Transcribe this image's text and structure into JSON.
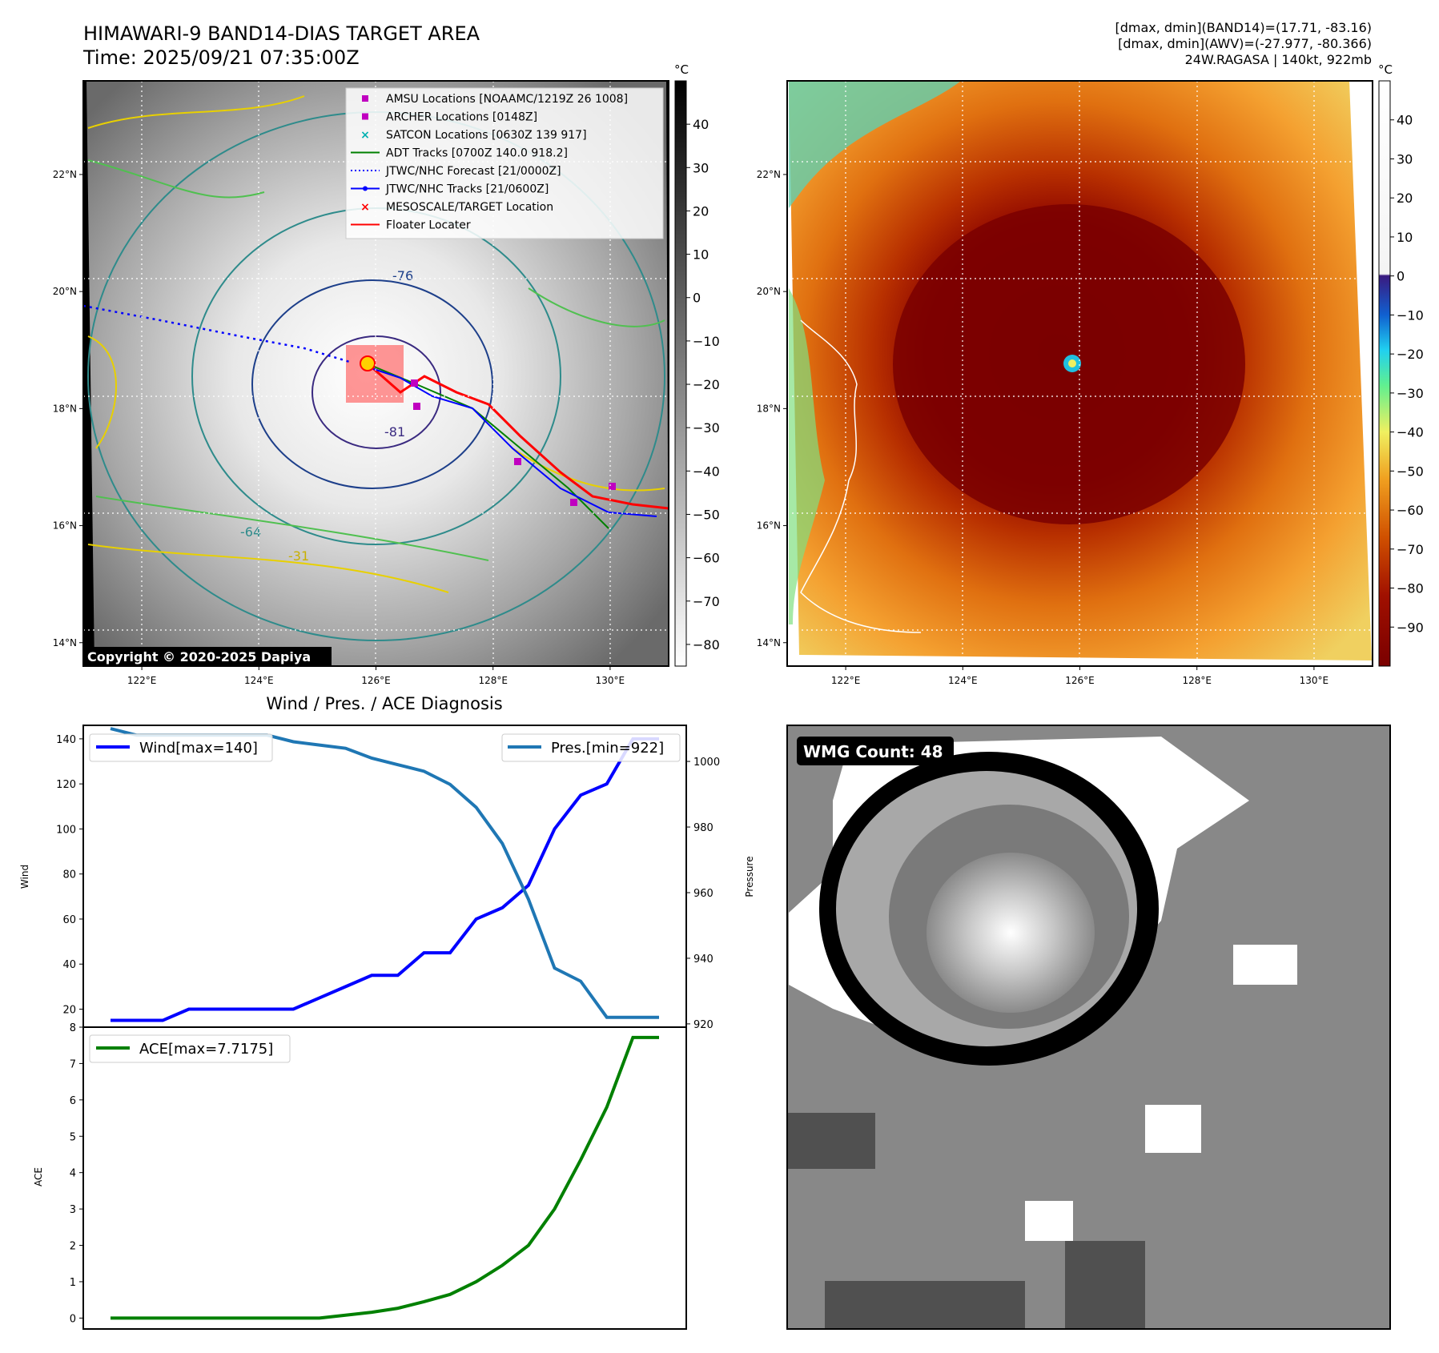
{
  "header": {
    "title": "HIMAWARI-9 BAND14-DIAS TARGET AREA",
    "time": "Time: 2025/09/21 07:35:00Z",
    "stat1": "[dmax, dmin](BAND14)=(17.71, -83.16)",
    "stat2": "[dmax, dmin](AWV)=(-27.977, -80.366)",
    "storm": "24W.RAGASA | 140kt, 922mb"
  },
  "maps": {
    "lon_ticks": [
      "122°E",
      "124°E",
      "126°E",
      "128°E",
      "130°E"
    ],
    "lon_values": [
      122,
      124,
      126,
      128,
      130
    ],
    "lat_ticks": [
      "22°N",
      "20°N",
      "18°N",
      "16°N",
      "14°N"
    ],
    "lat_values": [
      22,
      20,
      18,
      16,
      14
    ],
    "lon_range": [
      121,
      131
    ],
    "lat_range": [
      13.6,
      23.6
    ],
    "copyright": "Copyright © 2020-2025 Dapiya",
    "unit": "°C",
    "contour_labels": [
      "-76",
      "-81",
      "-64",
      "-31"
    ],
    "left_cbar": {
      "ticks": [
        "40",
        "30",
        "20",
        "10",
        "0",
        "−10",
        "−20",
        "−30",
        "−40",
        "−50",
        "−60",
        "−70",
        "−80"
      ],
      "values": [
        40,
        30,
        20,
        10,
        0,
        -10,
        -20,
        -30,
        -40,
        -50,
        -60,
        -70,
        -80
      ],
      "range": [
        -85,
        50
      ]
    },
    "right_cbar": {
      "ticks": [
        "40",
        "30",
        "20",
        "10",
        "0",
        "−10",
        "−20",
        "−30",
        "−40",
        "−50",
        "−60",
        "−70",
        "−80",
        "−90"
      ],
      "values": [
        40,
        30,
        20,
        10,
        0,
        -10,
        -20,
        -30,
        -40,
        -50,
        -60,
        -70,
        -80,
        -90
      ],
      "range": [
        -100,
        50
      ]
    },
    "legend": [
      {
        "label": "AMSU Locations [NOAAMC/1219Z 26 1008]",
        "marker": "square",
        "color": "#c000c0"
      },
      {
        "label": "ARCHER Locations [0148Z]",
        "marker": "square",
        "color": "#c000c0"
      },
      {
        "label": "SATCON Locations [0630Z 139 917]",
        "marker": "x",
        "color": "#00b0b0"
      },
      {
        "label": "ADT Tracks [0700Z 140.0 918.2]",
        "marker": "line",
        "color": "#008000"
      },
      {
        "label": "JTWC/NHC Forecast [21/0000Z]",
        "marker": "dotted",
        "color": "#0000ff"
      },
      {
        "label": "JTWC/NHC Tracks [21/0600Z]",
        "marker": "line-dot",
        "color": "#0000ff"
      },
      {
        "label": "MESOSCALE/TARGET Location",
        "marker": "x",
        "color": "#ff0000"
      },
      {
        "label": "Floater Locater",
        "marker": "line",
        "color": "#ff0000"
      }
    ]
  },
  "wmg": {
    "label": "WMG Count: 48"
  },
  "chart_data": [
    {
      "type": "line",
      "title": "Wind / Pres. / ACE Diagnosis",
      "ylabel": "Wind",
      "y2label": "Pressure",
      "ylim": [
        12,
        146
      ],
      "y2lim": [
        919,
        1011
      ],
      "yticks": [
        20,
        40,
        60,
        80,
        100,
        120,
        140
      ],
      "y2ticks": [
        920,
        940,
        960,
        980,
        1000
      ],
      "x": [
        0,
        1,
        2,
        3,
        4,
        5,
        6,
        7,
        8,
        9,
        10,
        11,
        12,
        13,
        14,
        15,
        16,
        17,
        18,
        19,
        20,
        21
      ],
      "series": [
        {
          "name": "Wind[max=140]",
          "axis": "left",
          "color": "#0000ff",
          "values": [
            15,
            15,
            15,
            20,
            20,
            20,
            20,
            20,
            25,
            30,
            35,
            35,
            45,
            45,
            60,
            65,
            75,
            100,
            115,
            120,
            140,
            140
          ]
        },
        {
          "name": "Pres.[min=922]",
          "axis": "right",
          "color": "#1f77b4",
          "values": [
            1010,
            1008,
            1008,
            1008,
            1008,
            1008,
            1008,
            1006,
            1005,
            1004,
            1001,
            999,
            997,
            993,
            986,
            975,
            958,
            937,
            933,
            922,
            922,
            922
          ]
        }
      ]
    },
    {
      "type": "line",
      "ylabel": "ACE",
      "ylim": [
        -0.3,
        8.0
      ],
      "yticks": [
        0,
        1,
        2,
        3,
        4,
        5,
        6,
        7,
        8
      ],
      "x": [
        0,
        1,
        2,
        3,
        4,
        5,
        6,
        7,
        8,
        9,
        10,
        11,
        12,
        13,
        14,
        15,
        16,
        17,
        18,
        19,
        20,
        21
      ],
      "series": [
        {
          "name": "ACE[max=7.7175]",
          "color": "#008000",
          "values": [
            0,
            0,
            0,
            0,
            0,
            0,
            0,
            0,
            0,
            0.08,
            0.16,
            0.27,
            0.45,
            0.65,
            1.0,
            1.45,
            2.0,
            3.0,
            4.35,
            5.8,
            7.7175,
            7.7175
          ]
        }
      ]
    }
  ]
}
